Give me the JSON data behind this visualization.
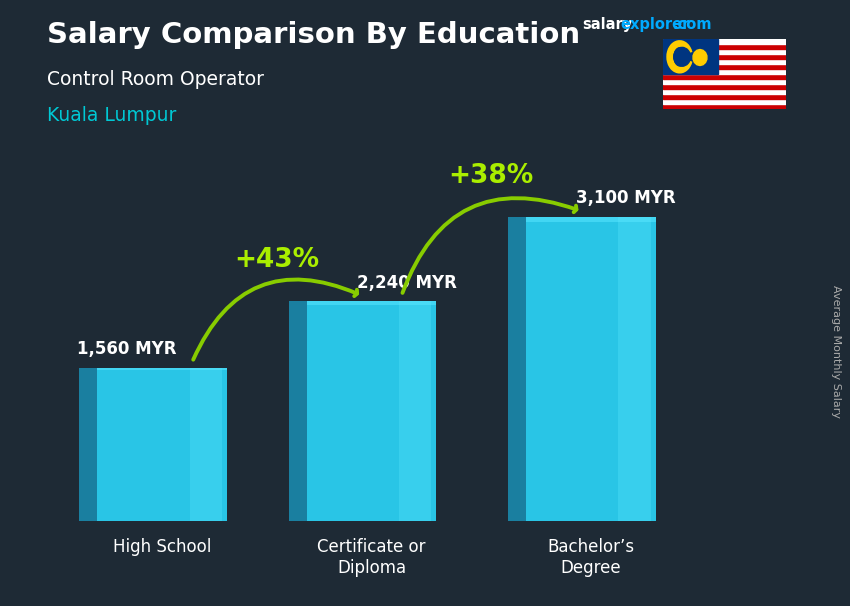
{
  "title_main": "Salary Comparison By Education",
  "title_sub": "Control Room Operator",
  "title_city": "Kuala Lumpur",
  "ylabel": "Average Monthly Salary",
  "categories": [
    "High School",
    "Certificate or\nDiploma",
    "Bachelor’s\nDegree"
  ],
  "values": [
    1560,
    2240,
    3100
  ],
  "value_labels": [
    "1,560 MYR",
    "2,240 MYR",
    "3,100 MYR"
  ],
  "pct_labels": [
    "+43%",
    "+38%"
  ],
  "bar_face_color": "#29c5e6",
  "bar_side_color": "#1a7fa0",
  "bar_top_color": "#45d8f5",
  "bg_color": "#1e2a35",
  "title_color": "#ffffff",
  "sub_color": "#ffffff",
  "city_color": "#00c8d4",
  "pct_color": "#aaee00",
  "arrow_color": "#88cc00",
  "label_color": "#ffffff",
  "cat_color": "#ffffff",
  "watermark_salary_color": "#ffffff",
  "watermark_explorer_color": "#00aaff",
  "watermark_com_color": "#00aaff",
  "ylabel_color": "#aaaaaa",
  "ylim": [
    0,
    4200
  ],
  "xlim": [
    0,
    7.5
  ],
  "x_positions": [
    1.2,
    3.3,
    5.5
  ],
  "bar_width": 1.3,
  "bar_depth": 0.18
}
